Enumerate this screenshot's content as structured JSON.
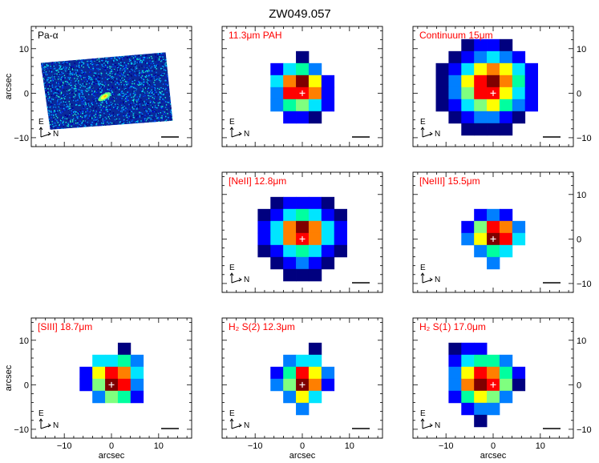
{
  "figure": {
    "title": "ZW049.057",
    "axis_label": "arcsec",
    "compass": {
      "east": "E",
      "north": "N"
    }
  },
  "chart_data": {
    "type": "heatmap",
    "title": "ZW049.057",
    "xlabel": "arcsec",
    "ylabel": "arcsec",
    "xlim": [
      -17,
      17
    ],
    "ylim": [
      -12,
      15
    ],
    "x_ticks": [
      -10,
      0,
      10
    ],
    "y_ticks": [
      -10,
      0,
      10
    ],
    "grid": false,
    "colormap": [
      "#00007f",
      "#0000ff",
      "#007fff",
      "#00e5ff",
      "#00ff9f",
      "#7fff7f",
      "#ffff00",
      "#ff7f00",
      "#ff0000",
      "#7f0000"
    ],
    "pixel_size_arcsec": 2.7,
    "marker": {
      "x": 0,
      "y": 0,
      "symbol": "+"
    },
    "panels": [
      {
        "label": "Pa-α",
        "label_color": "#000000",
        "kind": "image",
        "row": 0,
        "col": 0,
        "image_corners": [
          [
            -15,
            6.8
          ],
          [
            11.5,
            9.2
          ],
          [
            13,
            -6.2
          ],
          [
            -13,
            -8.2
          ]
        ],
        "source_center": [
          -1.5,
          -0.8
        ]
      },
      {
        "label": "11.3μm PAH",
        "label_color": "#ff0000",
        "kind": "cube",
        "row": 0,
        "col": 1,
        "col_start": -3,
        "row_start": 3,
        "grid": [
          [
            null,
            null,
            null,
            0,
            null,
            null
          ],
          [
            null,
            1,
            3,
            4,
            2,
            null
          ],
          [
            null,
            3,
            7,
            9,
            6,
            1
          ],
          [
            null,
            2,
            8,
            8,
            7,
            1
          ],
          [
            null,
            2,
            4,
            5,
            3,
            1
          ],
          [
            null,
            null,
            1,
            1,
            0,
            null
          ]
        ]
      },
      {
        "label": "Continuum 15μm",
        "label_color": "#ff0000",
        "kind": "cube",
        "row": 0,
        "col": 2,
        "col_start": -4,
        "row_start": 4,
        "grid": [
          [
            null,
            null,
            0,
            1,
            1,
            0,
            null,
            null
          ],
          [
            null,
            0,
            1,
            2,
            3,
            2,
            1,
            null
          ],
          [
            0,
            1,
            3,
            6,
            7,
            6,
            3,
            1
          ],
          [
            0,
            2,
            6,
            8,
            9,
            7,
            4,
            1
          ],
          [
            0,
            2,
            5,
            8,
            8,
            6,
            3,
            1
          ],
          [
            0,
            1,
            3,
            5,
            6,
            4,
            2,
            1
          ],
          [
            null,
            0,
            1,
            2,
            2,
            1,
            0,
            null
          ],
          [
            null,
            null,
            0,
            0,
            0,
            0,
            null,
            null
          ]
        ]
      },
      {
        "label": "[NeII] 12.8μm",
        "label_color": "#ff0000",
        "kind": "cube",
        "row": 1,
        "col": 1,
        "col_start": -3,
        "row_start": 3,
        "grid": [
          [
            null,
            0,
            1,
            1,
            1,
            0,
            null
          ],
          [
            0,
            1,
            3,
            4,
            3,
            1,
            0
          ],
          [
            1,
            3,
            7,
            9,
            7,
            3,
            1
          ],
          [
            1,
            3,
            7,
            8,
            7,
            3,
            1
          ],
          [
            0,
            1,
            3,
            4,
            3,
            1,
            0
          ],
          [
            null,
            0,
            1,
            2,
            1,
            0,
            null
          ],
          [
            null,
            null,
            0,
            0,
            0,
            null,
            null
          ]
        ]
      },
      {
        "label": "[NeIII] 15.5μm",
        "label_color": "#ff0000",
        "kind": "cube",
        "row": 1,
        "col": 2,
        "col_start": -2,
        "row_start": 2,
        "grid": [
          [
            null,
            1,
            2,
            1,
            null
          ],
          [
            1,
            5,
            8,
            7,
            2
          ],
          [
            2,
            6,
            9,
            8,
            3
          ],
          [
            null,
            2,
            4,
            3,
            null
          ],
          [
            null,
            null,
            2,
            null,
            null
          ]
        ]
      },
      {
        "label": "[SIII] 18.7μm",
        "label_color": "#ff0000",
        "kind": "cube",
        "row": 2,
        "col": 0,
        "col_start": -2,
        "row_start": 3,
        "grid": [
          [
            null,
            null,
            null,
            0,
            null
          ],
          [
            null,
            3,
            3,
            4,
            2
          ],
          [
            1,
            6,
            8,
            7,
            3
          ],
          [
            1,
            5,
            9,
            8,
            2
          ],
          [
            null,
            2,
            5,
            4,
            1
          ]
        ]
      },
      {
        "label": "H₂ S(2) 12.3μm",
        "label_color": "#ff0000",
        "kind": "cube",
        "row": 2,
        "col": 1,
        "col_start": -2,
        "row_start": 3,
        "grid": [
          [
            null,
            null,
            null,
            0,
            null
          ],
          [
            null,
            2,
            3,
            3,
            null
          ],
          [
            1,
            4,
            8,
            6,
            2
          ],
          [
            2,
            5,
            9,
            7,
            1
          ],
          [
            null,
            2,
            6,
            3,
            null
          ],
          [
            null,
            null,
            2,
            null,
            null
          ]
        ]
      },
      {
        "label": "H₂ S(1) 17.0μm",
        "label_color": "#ff0000",
        "kind": "cube",
        "row": 2,
        "col": 2,
        "col_start": -3,
        "row_start": 3,
        "grid": [
          [
            0,
            1,
            1,
            null,
            null,
            null
          ],
          [
            1,
            3,
            4,
            4,
            2,
            null
          ],
          [
            2,
            6,
            8,
            7,
            4,
            1
          ],
          [
            2,
            7,
            9,
            8,
            5,
            0
          ],
          [
            1,
            4,
            6,
            5,
            2,
            null
          ],
          [
            null,
            1,
            2,
            2,
            null,
            null
          ],
          [
            null,
            null,
            0,
            null,
            null,
            null
          ]
        ]
      }
    ]
  }
}
